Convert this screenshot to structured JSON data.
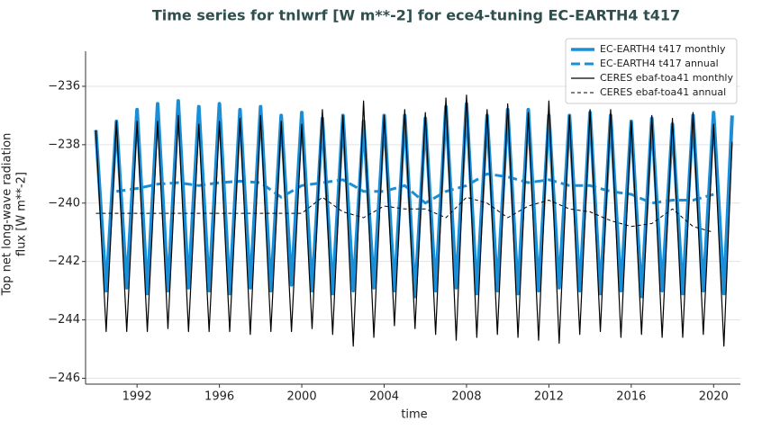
{
  "chart_data": {
    "type": "line",
    "title": "Time series for tnlwrf [W m**-2] for ece4-tuning EC-EARTH4 t417",
    "xlabel": "time",
    "ylabel": [
      "Top net long-wave radiation",
      "flux [W m**-2]"
    ],
    "xlim": [
      1989.5,
      2021.3
    ],
    "ylim": [
      -246.2,
      -234.8
    ],
    "xticks": [
      1992,
      1996,
      2000,
      2004,
      2008,
      2012,
      2016,
      2020
    ],
    "yticks": [
      {
        "value": -246,
        "label": "−246"
      },
      {
        "value": -244,
        "label": "−244"
      },
      {
        "value": -242,
        "label": "−242"
      },
      {
        "value": -240,
        "label": "−240"
      },
      {
        "value": -238,
        "label": "−238"
      },
      {
        "value": -236,
        "label": "−236"
      }
    ],
    "grid": true,
    "legend": "upper right",
    "series": [
      {
        "name": "EC-EARTH4 t417 monthly",
        "color": "#1a8fd8",
        "style": "solid",
        "width": 4,
        "x": [
          1990,
          1990.5,
          1991,
          1991.5,
          1992,
          1992.5,
          1993,
          1993.5,
          1994,
          1994.5,
          1995,
          1995.5,
          1996,
          1996.5,
          1997,
          1997.5,
          1998,
          1998.5,
          1999,
          1999.5,
          2000,
          2000.5,
          2001,
          2001.5,
          2002,
          2002.5,
          2003,
          2003.5,
          2004,
          2004.5,
          2005,
          2005.5,
          2006,
          2006.5,
          2007,
          2007.5,
          2008,
          2008.5,
          2009,
          2009.5,
          2010,
          2010.5,
          2011,
          2011.5,
          2012,
          2012.5,
          2013,
          2013.5,
          2014,
          2014.5,
          2015,
          2015.5,
          2016,
          2016.5,
          2017,
          2017.5,
          2018,
          2018.5,
          2019,
          2019.5,
          2020,
          2020.5,
          2020.9
        ],
        "values": [
          -237.5,
          -243.0,
          -237.2,
          -242.9,
          -236.8,
          -243.1,
          -236.6,
          -243.0,
          -236.5,
          -242.9,
          -236.7,
          -243.0,
          -236.6,
          -243.1,
          -236.8,
          -242.9,
          -236.7,
          -243.0,
          -237.0,
          -242.8,
          -236.9,
          -243.0,
          -237.1,
          -243.1,
          -237.0,
          -243.0,
          -237.2,
          -242.9,
          -237.0,
          -243.0,
          -237.0,
          -243.2,
          -237.1,
          -243.0,
          -236.7,
          -242.9,
          -236.6,
          -243.1,
          -237.0,
          -243.0,
          -236.8,
          -243.1,
          -236.8,
          -243.0,
          -237.0,
          -242.9,
          -237.0,
          -243.0,
          -236.9,
          -243.1,
          -237.0,
          -243.0,
          -237.2,
          -243.2,
          -237.1,
          -243.0,
          -237.3,
          -243.1,
          -237.0,
          -243.0,
          -236.9,
          -243.1,
          -237.0
        ]
      },
      {
        "name": "EC-EARTH4 t417 annual",
        "color": "#1a8fd8",
        "style": "dashed",
        "width": 3,
        "x": [
          1991,
          1992,
          1993,
          1994,
          1995,
          1996,
          1997,
          1998,
          1999,
          2000,
          2001,
          2002,
          2003,
          2004,
          2005,
          2006,
          2007,
          2008,
          2009,
          2010,
          2011,
          2012,
          2013,
          2014,
          2015,
          2016,
          2017,
          2018,
          2019,
          2020
        ],
        "values": [
          -239.6,
          -239.5,
          -239.35,
          -239.3,
          -239.4,
          -239.3,
          -239.25,
          -239.3,
          -239.8,
          -239.4,
          -239.3,
          -239.2,
          -239.6,
          -239.6,
          -239.4,
          -240.0,
          -239.6,
          -239.4,
          -239.0,
          -239.1,
          -239.3,
          -239.2,
          -239.4,
          -239.4,
          -239.6,
          -239.7,
          -240.0,
          -239.9,
          -239.9,
          -239.7
        ]
      },
      {
        "name": "CERES ebaf-toa41 monthly",
        "color": "#000000",
        "style": "solid",
        "width": 1.2,
        "x": [
          1990,
          1990.5,
          1991,
          1991.5,
          1992,
          1992.5,
          1993,
          1993.5,
          1994,
          1994.5,
          1995,
          1995.5,
          1996,
          1996.5,
          1997,
          1997.5,
          1998,
          1998.5,
          1999,
          1999.5,
          2000,
          2000.5,
          2001,
          2001.5,
          2002,
          2002.5,
          2003,
          2003.5,
          2004,
          2004.5,
          2005,
          2005.5,
          2006,
          2006.5,
          2007,
          2007.5,
          2008,
          2008.5,
          2009,
          2009.5,
          2010,
          2010.5,
          2011,
          2011.5,
          2012,
          2012.5,
          2013,
          2013.5,
          2014,
          2014.5,
          2015,
          2015.5,
          2016,
          2016.5,
          2017,
          2017.5,
          2018,
          2018.5,
          2019,
          2019.5,
          2020,
          2020.5,
          2020.9
        ],
        "values": [
          -237.5,
          -244.4,
          -237.2,
          -244.4,
          -237.2,
          -244.4,
          -237.2,
          -244.3,
          -237.0,
          -244.4,
          -237.3,
          -244.4,
          -237.2,
          -244.4,
          -237.1,
          -244.5,
          -237.0,
          -244.4,
          -237.2,
          -244.4,
          -237.3,
          -244.3,
          -236.8,
          -244.5,
          -237.0,
          -244.9,
          -236.5,
          -244.6,
          -237.0,
          -244.2,
          -236.8,
          -244.3,
          -236.9,
          -244.5,
          -236.4,
          -244.7,
          -236.3,
          -244.6,
          -236.8,
          -244.5,
          -236.6,
          -244.6,
          -236.9,
          -244.7,
          -236.5,
          -244.8,
          -237.0,
          -244.5,
          -236.8,
          -244.4,
          -236.8,
          -244.6,
          -237.2,
          -244.5,
          -237.0,
          -244.6,
          -237.1,
          -244.6,
          -236.9,
          -244.5,
          -237.3,
          -244.9,
          -237.9
        ]
      },
      {
        "name": "CERES ebaf-toa41 annual",
        "color": "#000000",
        "style": "dashed",
        "width": 1,
        "x": [
          1990,
          1991,
          1992,
          1993,
          1994,
          1995,
          1996,
          1997,
          1998,
          1999,
          2000,
          2001,
          2002,
          2003,
          2004,
          2005,
          2006,
          2007,
          2008,
          2009,
          2010,
          2011,
          2012,
          2013,
          2014,
          2015,
          2016,
          2017,
          2018,
          2019,
          2020
        ],
        "values": [
          -240.35,
          -240.35,
          -240.35,
          -240.35,
          -240.35,
          -240.35,
          -240.35,
          -240.35,
          -240.35,
          -240.35,
          -240.35,
          -239.8,
          -240.3,
          -240.5,
          -240.1,
          -240.2,
          -240.2,
          -240.5,
          -239.8,
          -240.0,
          -240.5,
          -240.1,
          -239.9,
          -240.2,
          -240.3,
          -240.6,
          -240.8,
          -240.7,
          -240.2,
          -240.8,
          -241.0
        ]
      }
    ]
  }
}
